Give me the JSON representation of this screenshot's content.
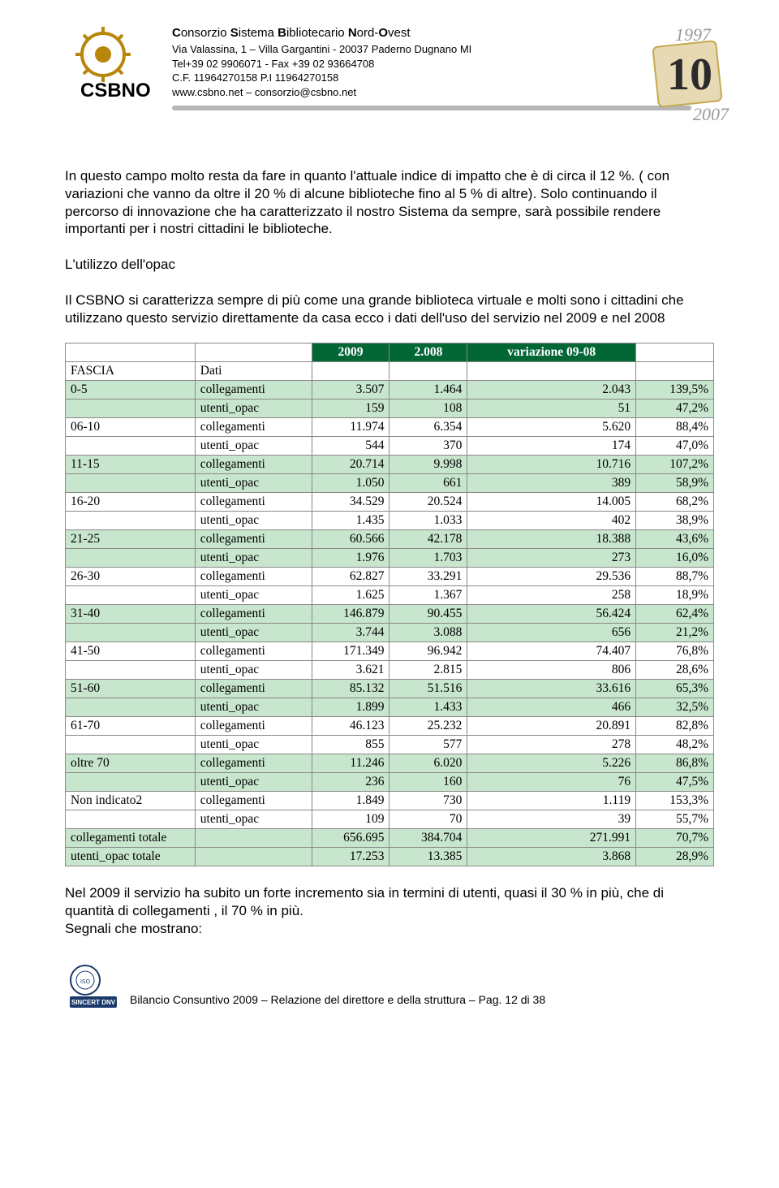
{
  "header": {
    "org_line": "Consorzio Sistema Bibliotecario Nord-Ovest",
    "bold_letters": [
      "C",
      "S",
      "B",
      "N",
      "O"
    ],
    "addr": "Via Valassina, 1 – Villa Gargantini - 20037 Paderno Dugnano MI",
    "tel": "Tel+39 02 9906071 - Fax +39 02 93664708",
    "fiscal": "C.F. 11964270158    P.I 11964270158",
    "web": "www.csbno.net – consorzio@csbno.net",
    "logo_text": "CSBNO",
    "year_top": "1997",
    "year_mid": "10",
    "year_bot": "2007"
  },
  "para1": "In questo campo molto resta da fare in quanto l'attuale indice di impatto che è di circa il 12 %. ( con variazioni che vanno da oltre il 20 % di alcune biblioteche  fino al 5 % di altre). Solo continuando il percorso di innovazione che ha caratterizzato il nostro Sistema da sempre, sarà possibile rendere importanti per i nostri cittadini le  biblioteche.",
  "subtitle": "L'utilizzo dell'opac",
  "para2": "Il CSBNO si caratterizza sempre di più come una grande biblioteca virtuale e molti sono i cittadini che utilizzano questo servizio direttamente da casa ecco i dati dell'uso del servizio nel 2009 e nel 2008",
  "table": {
    "header_cells": {
      "c3": "2009",
      "c4": "2.008",
      "c5": "variazione 09-08"
    },
    "fascia_label": "FASCIA",
    "dati_label": "Dati",
    "colors": {
      "header_bg": "#036635",
      "header_fg": "#ffffff",
      "band_a": "#c7e6cd",
      "band_b": "#ffffff",
      "border": "#888888"
    },
    "rows": [
      {
        "fascia": "0-5",
        "dati": "collegamenti",
        "y09": "3.507",
        "y08": "1.464",
        "var": "2.043",
        "pct": "139,5%"
      },
      {
        "fascia": "",
        "dati": "utenti_opac",
        "y09": "159",
        "y08": "108",
        "var": "51",
        "pct": "47,2%"
      },
      {
        "fascia": "06-10",
        "dati": "collegamenti",
        "y09": "11.974",
        "y08": "6.354",
        "var": "5.620",
        "pct": "88,4%"
      },
      {
        "fascia": "",
        "dati": "utenti_opac",
        "y09": "544",
        "y08": "370",
        "var": "174",
        "pct": "47,0%"
      },
      {
        "fascia": "11-15",
        "dati": "collegamenti",
        "y09": "20.714",
        "y08": "9.998",
        "var": "10.716",
        "pct": "107,2%"
      },
      {
        "fascia": "",
        "dati": "utenti_opac",
        "y09": "1.050",
        "y08": "661",
        "var": "389",
        "pct": "58,9%"
      },
      {
        "fascia": "16-20",
        "dati": "collegamenti",
        "y09": "34.529",
        "y08": "20.524",
        "var": "14.005",
        "pct": "68,2%"
      },
      {
        "fascia": "",
        "dati": "utenti_opac",
        "y09": "1.435",
        "y08": "1.033",
        "var": "402",
        "pct": "38,9%"
      },
      {
        "fascia": "21-25",
        "dati": "collegamenti",
        "y09": "60.566",
        "y08": "42.178",
        "var": "18.388",
        "pct": "43,6%"
      },
      {
        "fascia": "",
        "dati": "utenti_opac",
        "y09": "1.976",
        "y08": "1.703",
        "var": "273",
        "pct": "16,0%"
      },
      {
        "fascia": "26-30",
        "dati": "collegamenti",
        "y09": "62.827",
        "y08": "33.291",
        "var": "29.536",
        "pct": "88,7%"
      },
      {
        "fascia": "",
        "dati": "utenti_opac",
        "y09": "1.625",
        "y08": "1.367",
        "var": "258",
        "pct": "18,9%"
      },
      {
        "fascia": "31-40",
        "dati": "collegamenti",
        "y09": "146.879",
        "y08": "90.455",
        "var": "56.424",
        "pct": "62,4%"
      },
      {
        "fascia": "",
        "dati": "utenti_opac",
        "y09": "3.744",
        "y08": "3.088",
        "var": "656",
        "pct": "21,2%"
      },
      {
        "fascia": "41-50",
        "dati": "collegamenti",
        "y09": "171.349",
        "y08": "96.942",
        "var": "74.407",
        "pct": "76,8%"
      },
      {
        "fascia": "",
        "dati": "utenti_opac",
        "y09": "3.621",
        "y08": "2.815",
        "var": "806",
        "pct": "28,6%"
      },
      {
        "fascia": "51-60",
        "dati": "collegamenti",
        "y09": "85.132",
        "y08": "51.516",
        "var": "33.616",
        "pct": "65,3%"
      },
      {
        "fascia": "",
        "dati": "utenti_opac",
        "y09": "1.899",
        "y08": "1.433",
        "var": "466",
        "pct": "32,5%"
      },
      {
        "fascia": "61-70",
        "dati": "collegamenti",
        "y09": "46.123",
        "y08": "25.232",
        "var": "20.891",
        "pct": "82,8%"
      },
      {
        "fascia": "",
        "dati": "utenti_opac",
        "y09": "855",
        "y08": "577",
        "var": "278",
        "pct": "48,2%"
      },
      {
        "fascia": "oltre 70",
        "dati": "collegamenti",
        "y09": "11.246",
        "y08": "6.020",
        "var": "5.226",
        "pct": "86,8%"
      },
      {
        "fascia": "",
        "dati": "utenti_opac",
        "y09": "236",
        "y08": "160",
        "var": "76",
        "pct": "47,5%"
      },
      {
        "fascia": "Non indicato2",
        "dati": "collegamenti",
        "y09": "1.849",
        "y08": "730",
        "var": "1.119",
        "pct": "153,3%"
      },
      {
        "fascia": "",
        "dati": "utenti_opac",
        "y09": "109",
        "y08": "70",
        "var": "39",
        "pct": "55,7%"
      }
    ],
    "totals": [
      {
        "fascia": "collegamenti totale",
        "dati": "",
        "y09": "656.695",
        "y08": "384.704",
        "var": "271.991",
        "pct": "70,7%"
      },
      {
        "fascia": "utenti_opac totale",
        "dati": "",
        "y09": "17.253",
        "y08": "13.385",
        "var": "3.868",
        "pct": "28,9%"
      }
    ]
  },
  "para3": "Nel 2009 il servizio  ha subito un forte incremento sia in termini di utenti, quasi il 30 % in più, che di quantità di collegamenti , il 70 % in più.",
  "para4": "Segnali che mostrano:",
  "footer": "Bilancio Consuntivo 2009 – Relazione del direttore e della struttura – Pag. 12 di 38"
}
